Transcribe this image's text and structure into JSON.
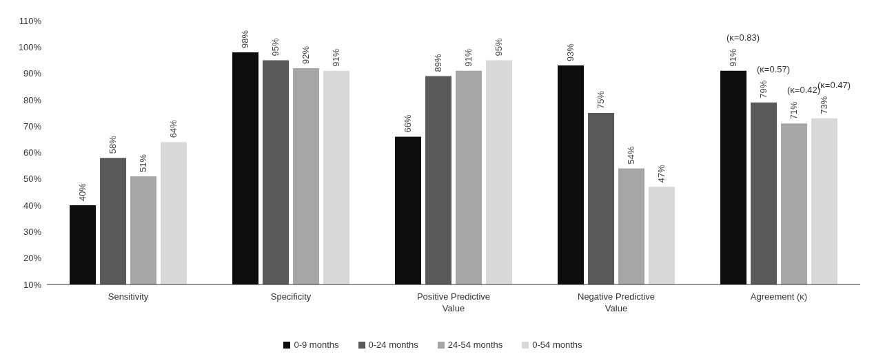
{
  "chart_data": {
    "type": "bar",
    "categories": [
      "Sensitivity",
      "Specificity",
      "Positive Predictive Value",
      "Negative Predictive Value",
      "Agreement (κ)"
    ],
    "series": [
      {
        "name": "0-9 months",
        "color": "#0d0d0d",
        "values": [
          40,
          98,
          66,
          93,
          91
        ],
        "value_labels": [
          "40%",
          "98%",
          "66%",
          "93%",
          "91%"
        ]
      },
      {
        "name": "0-24 months",
        "color": "#595959",
        "values": [
          58,
          95,
          89,
          75,
          79
        ],
        "value_labels": [
          "58%",
          "95%",
          "89%",
          "75%",
          "79%"
        ]
      },
      {
        "name": "24-54 months",
        "color": "#a6a6a6",
        "values": [
          51,
          92,
          91,
          54,
          71
        ],
        "value_labels": [
          "51%",
          "92%",
          "91%",
          "54%",
          "71%"
        ]
      },
      {
        "name": "0-54 months",
        "color": "#d9d9d9",
        "values": [
          64,
          91,
          95,
          47,
          73
        ],
        "value_labels": [
          "64%",
          "91%",
          "95%",
          "47%",
          "73%"
        ]
      }
    ],
    "ylim": [
      10,
      110
    ],
    "yticks": [
      {
        "value": 10,
        "label": "10%"
      },
      {
        "value": 20,
        "label": "20%"
      },
      {
        "value": 30,
        "label": "30%"
      },
      {
        "value": 40,
        "label": "40%"
      },
      {
        "value": 50,
        "label": "50%"
      },
      {
        "value": 60,
        "label": "60%"
      },
      {
        "value": 70,
        "label": "70%"
      },
      {
        "value": 80,
        "label": "80%"
      },
      {
        "value": 90,
        "label": "90%"
      },
      {
        "value": 100,
        "label": "100%"
      },
      {
        "value": 110,
        "label": "110%"
      }
    ],
    "annotations": [
      "(κ=0.83)",
      "(κ=0.57)",
      "(κ=0.42)",
      "(κ=0.47)"
    ],
    "grid": false,
    "legend": "bottom"
  }
}
